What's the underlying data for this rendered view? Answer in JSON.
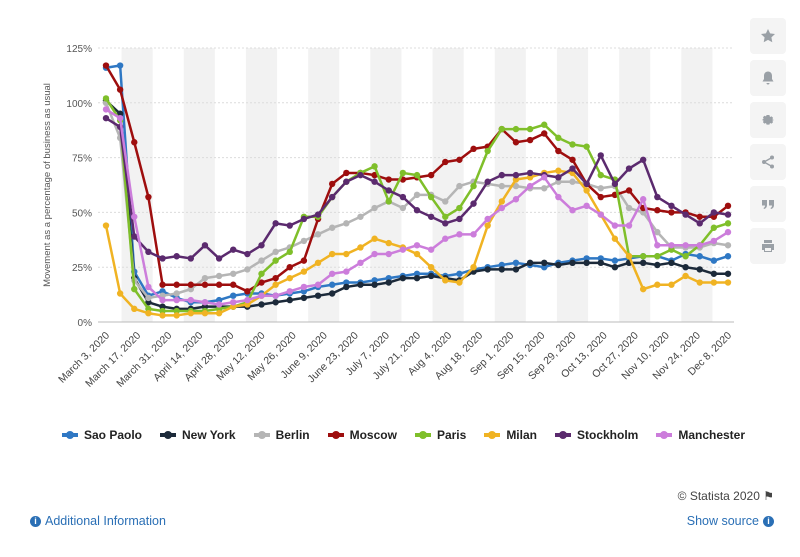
{
  "chart_data": {
    "type": "line",
    "ylabel": "Movement as a percentage of business as usual",
    "xlabel": "",
    "ylim": [
      0,
      125
    ],
    "yticks": [
      "0%",
      "25%",
      "50%",
      "75%",
      "100%",
      "125%"
    ],
    "x_tick_labels": [
      "March 3, 2020",
      "March 17, 2020",
      "March 31, 2020",
      "April 14, 2020",
      "April 28, 2020",
      "May 12, 2020",
      "May 26, 2020",
      "June 9, 2020",
      "June 23, 2020",
      "July 7, 2020",
      "July 21, 2020",
      "Aug 4, 2020",
      "Aug 18, 2020",
      "Sep 1, 2020",
      "Sep 15, 2020",
      "Sep 29, 2020",
      "Oct 13, 2020",
      "Oct 27, 2020",
      "Nov 10, 2020",
      "Nov 24, 2020",
      "Dec 8, 2020"
    ],
    "x_start": "2020-03-03",
    "x_end": "2020-12-08",
    "legend": "bottom",
    "series": [
      {
        "name": "Sao Paolo",
        "color": "#2f78c4",
        "values": [
          116,
          117,
          23,
          12,
          14,
          11,
          9,
          9,
          10,
          12,
          13,
          13,
          12,
          13,
          14,
          16,
          17,
          18,
          18,
          19,
          20,
          21,
          22,
          22,
          21,
          22,
          24,
          25,
          26,
          27,
          26,
          25,
          27,
          28,
          29,
          29,
          28,
          29,
          30,
          30,
          28,
          31,
          30,
          28,
          30
        ]
      },
      {
        "name": "New York",
        "color": "#1c2a3a",
        "values": [
          101,
          95,
          20,
          9,
          7,
          6,
          6,
          7,
          7,
          7,
          7,
          8,
          9,
          10,
          11,
          12,
          13,
          16,
          17,
          17,
          18,
          20,
          20,
          21,
          20,
          19,
          23,
          24,
          24,
          24,
          27,
          27,
          26,
          27,
          27,
          27,
          25,
          27,
          27,
          26,
          27,
          25,
          24,
          22,
          22
        ]
      },
      {
        "name": "Berlin",
        "color": "#b5b5b5",
        "values": [
          100,
          84,
          19,
          11,
          12,
          13,
          15,
          20,
          21,
          22,
          24,
          28,
          32,
          34,
          37,
          40,
          43,
          45,
          48,
          52,
          55,
          52,
          58,
          58,
          55,
          62,
          64,
          63,
          62,
          62,
          61,
          61,
          64,
          64,
          63,
          61,
          62,
          52,
          50,
          41,
          34,
          34,
          34,
          36,
          35
        ]
      },
      {
        "name": "Moscow",
        "color": "#9e0e0e",
        "values": [
          117,
          106,
          82,
          57,
          17,
          17,
          17,
          17,
          17,
          17,
          14,
          18,
          20,
          25,
          28,
          47,
          63,
          68,
          68,
          67,
          65,
          65,
          66,
          67,
          73,
          74,
          79,
          80,
          88,
          82,
          83,
          86,
          78,
          74,
          63,
          57,
          58,
          60,
          52,
          51,
          50,
          50,
          48,
          48,
          53
        ]
      },
      {
        "name": "Paris",
        "color": "#7fbf2a",
        "values": [
          102,
          92,
          15,
          6,
          5,
          5,
          5,
          5,
          6,
          7,
          9,
          22,
          28,
          32,
          48,
          48,
          57,
          64,
          68,
          71,
          55,
          68,
          67,
          57,
          48,
          52,
          62,
          78,
          88,
          88,
          88,
          90,
          84,
          81,
          80,
          67,
          65,
          30,
          30,
          30,
          33,
          30,
          35,
          43,
          45
        ]
      },
      {
        "name": "Milan",
        "color": "#f0b323",
        "values": [
          44,
          13,
          6,
          4,
          3,
          3,
          4,
          4,
          4,
          7,
          8,
          12,
          17,
          20,
          23,
          27,
          31,
          31,
          34,
          38,
          36,
          34,
          31,
          25,
          19,
          18,
          25,
          44,
          55,
          65,
          66,
          68,
          69,
          68,
          60,
          49,
          38,
          30,
          15,
          17,
          17,
          21,
          18,
          18,
          18
        ]
      },
      {
        "name": "Stockholm",
        "color": "#5b2a6e",
        "values": [
          93,
          89,
          39,
          32,
          29,
          30,
          29,
          35,
          29,
          33,
          31,
          35,
          45,
          44,
          47,
          49,
          57,
          64,
          67,
          64,
          60,
          57,
          51,
          48,
          45,
          47,
          54,
          64,
          67,
          67,
          68,
          67,
          66,
          70,
          63,
          76,
          63,
          70,
          74,
          57,
          53,
          49,
          45,
          50,
          49
        ]
      },
      {
        "name": "Manchester",
        "color": "#cc7ddb",
        "values": [
          97,
          93,
          48,
          16,
          10,
          10,
          10,
          9,
          8,
          9,
          10,
          12,
          12,
          14,
          16,
          17,
          22,
          23,
          27,
          31,
          31,
          33,
          35,
          33,
          38,
          40,
          40,
          47,
          52,
          56,
          62,
          66,
          57,
          51,
          53,
          49,
          44,
          44,
          56,
          35,
          35,
          35,
          35,
          37,
          41
        ]
      }
    ]
  },
  "legend_items": [
    "Sao Paolo",
    "New York",
    "Berlin",
    "Moscow",
    "Paris",
    "Milan",
    "Stockholm",
    "Manchester"
  ],
  "credit": "© Statista 2020",
  "footer": {
    "additional_info": "Additional Information",
    "show_source": "Show source"
  },
  "side_buttons": [
    "star-icon",
    "bell-icon",
    "gear-icon",
    "share-icon",
    "quote-icon",
    "print-icon"
  ]
}
